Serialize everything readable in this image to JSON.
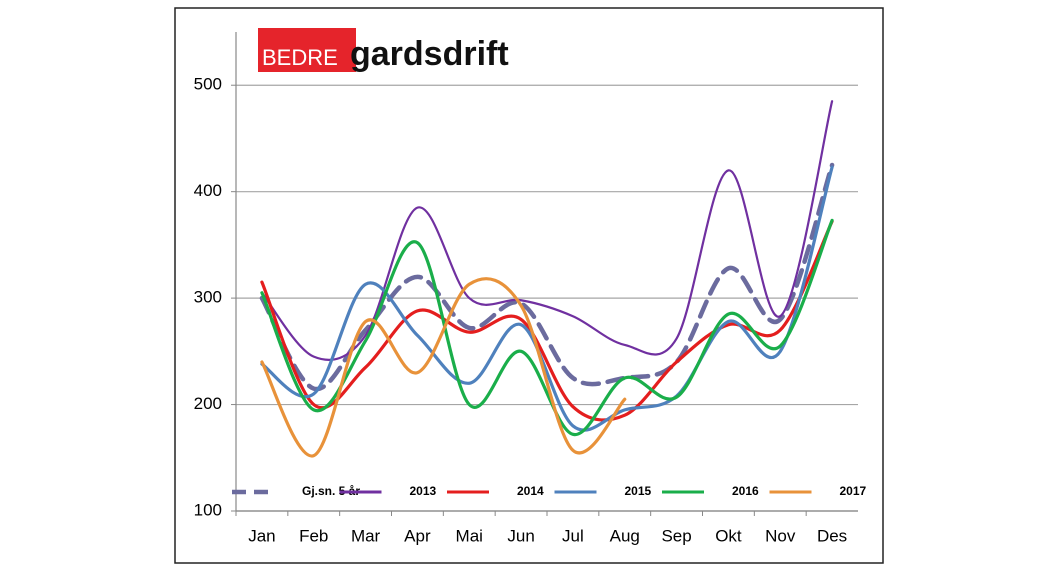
{
  "chart_data": {
    "type": "line",
    "logo": {
      "prefix": "BEDRE",
      "name": "gardsdrift"
    },
    "categories": [
      "Jan",
      "Feb",
      "Mar",
      "Apr",
      "Mai",
      "Jun",
      "Jul",
      "Aug",
      "Sep",
      "Okt",
      "Nov",
      "Des"
    ],
    "series": [
      {
        "name": "Gj.sn. 5 år",
        "color": "#6b6b9e",
        "dashed": true,
        "values": [
          300,
          215,
          270,
          320,
          272,
          295,
          225,
          225,
          240,
          328,
          280,
          425
        ]
      },
      {
        "name": "2013",
        "color": "#7030a0",
        "values": [
          305,
          245,
          265,
          385,
          300,
          298,
          283,
          256,
          262,
          420,
          283,
          485
        ]
      },
      {
        "name": "2014",
        "color": "#e41e1e",
        "values": [
          315,
          200,
          235,
          288,
          268,
          280,
          198,
          190,
          240,
          275,
          270,
          372
        ]
      },
      {
        "name": "2015",
        "color": "#4f81bd",
        "values": [
          238,
          210,
          313,
          265,
          220,
          275,
          180,
          195,
          208,
          278,
          250,
          423
        ]
      },
      {
        "name": "2016",
        "color": "#1aae4a",
        "values": [
          305,
          195,
          260,
          352,
          200,
          250,
          172,
          225,
          207,
          285,
          255,
          373
        ]
      },
      {
        "name": "2017",
        "color": "#e8923a",
        "values": [
          240,
          152,
          278,
          230,
          313,
          293,
          157,
          205,
          null,
          null,
          null,
          null
        ]
      }
    ],
    "ylim": [
      100,
      550
    ],
    "yticks": [
      100,
      200,
      300,
      400,
      500
    ],
    "grid": true,
    "legend": "bottom"
  }
}
